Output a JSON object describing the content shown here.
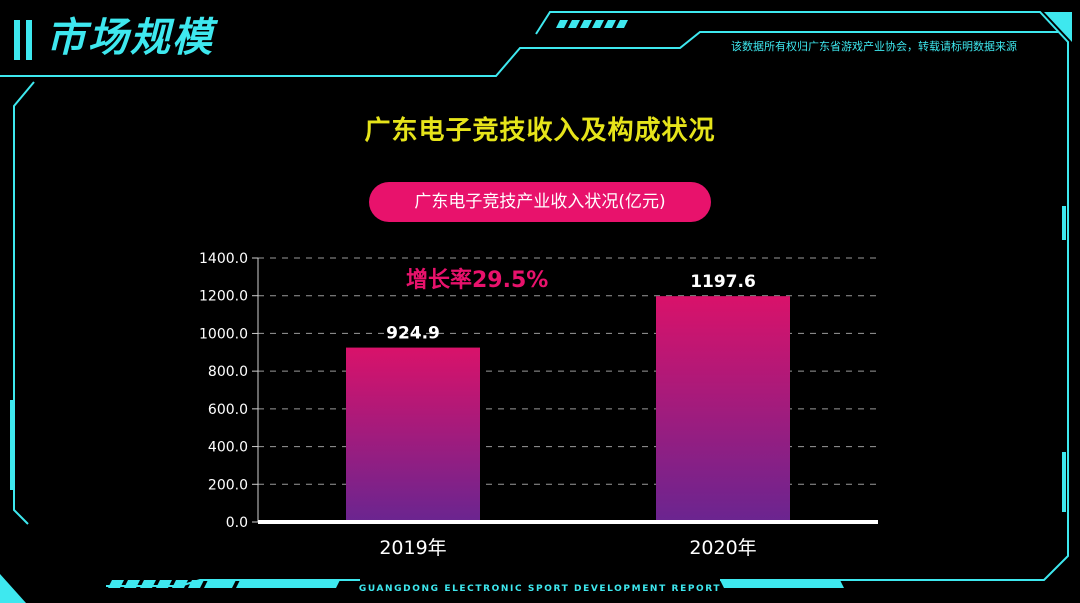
{
  "header": {
    "section_title": "市场规模",
    "source_note": "该数据所有权归广东省游戏产业协会，转载请标明数据来源"
  },
  "annotation": {
    "growth": "增长率29.5%"
  },
  "footer": {
    "text": "GUANGDONG ELECTRONIC SPORT DEVELOPMENT REPORT"
  },
  "colors": {
    "accent_cyan": "#3ee8ef",
    "title_yellow": "#e6e41a",
    "pink": "#e8126c",
    "bar_top": "#d9126a",
    "bar_bottom": "#6a2590"
  },
  "chart_data": {
    "type": "bar",
    "title": "广东电子竞技收入及构成状况",
    "subtitle": "广东电子竞技产业收入状况(亿元)",
    "categories": [
      "2019年",
      "2020年"
    ],
    "values": [
      924.9,
      1197.6
    ],
    "data_labels": [
      "924.9",
      "1197.6"
    ],
    "ylim": [
      0,
      1400
    ],
    "yticks": [
      0,
      200,
      400,
      600,
      800,
      1000,
      1200,
      1400
    ],
    "ytick_labels": [
      "0.0",
      "200.0",
      "400.0",
      "600.0",
      "800.0",
      "1000.0",
      "1200.0",
      "1400.0"
    ],
    "grid": true,
    "legend": "none"
  }
}
